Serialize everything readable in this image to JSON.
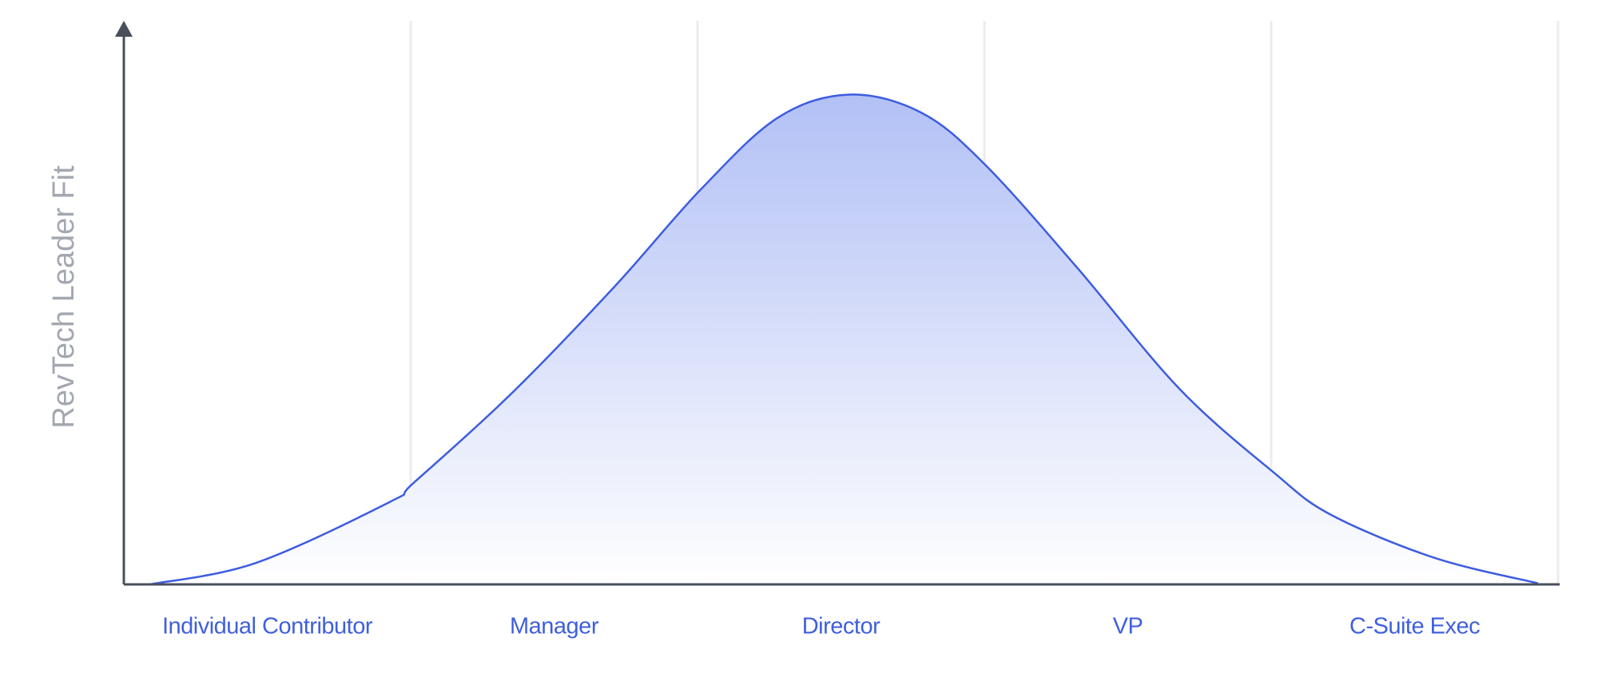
{
  "chart_data": {
    "type": "area",
    "y_label": "RevTech Leader Fit",
    "categories": [
      "Individual Contributor",
      "Manager",
      "Director",
      "VP",
      "C-Suite Exec"
    ],
    "x": [
      0.09,
      0.46,
      0.93,
      1.01,
      1.35,
      1.71,
      2.01,
      2.28,
      2.53,
      2.78,
      3.0,
      3.32,
      3.68,
      4.01,
      4.21,
      4.57,
      4.93
    ],
    "values": [
      0,
      3.8,
      14.7,
      18,
      33.8,
      52.8,
      70,
      82.8,
      86.9,
      83.7,
      74.6,
      56.4,
      34.7,
      19.8,
      12.3,
      4.7,
      0.2
    ],
    "xlim": [
      0,
      5
    ],
    "ylim": [
      0,
      100
    ],
    "color": "#3d5ce0",
    "fill_color": "#b2c0f5",
    "grid": true
  }
}
